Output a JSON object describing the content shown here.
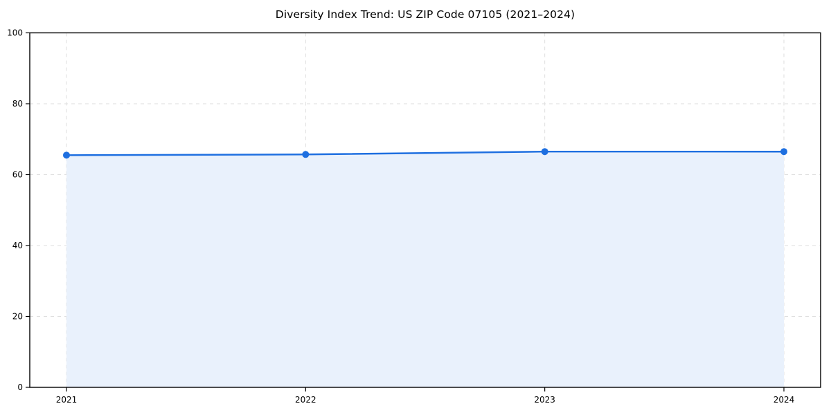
{
  "chart_data": {
    "type": "area",
    "title": "Diversity Index Trend: US ZIP Code 07105 (2021–2024)",
    "categories": [
      "2021",
      "2022",
      "2023",
      "2024"
    ],
    "values": [
      65.5,
      65.7,
      66.5,
      66.5
    ],
    "xlabel": "",
    "ylabel": "",
    "ylim": [
      0,
      100
    ],
    "y_ticks": [
      0,
      20,
      40,
      60,
      80,
      100
    ],
    "grid": true,
    "grid_style": "dashed",
    "legend": "none",
    "colors": {
      "line": "#1e6fe0",
      "marker": "#1e6fe0",
      "area_fill": "#e9f1fc",
      "grid_line": "#dedede",
      "spine": "#000000",
      "text": "#000000",
      "background": "#ffffff"
    }
  }
}
